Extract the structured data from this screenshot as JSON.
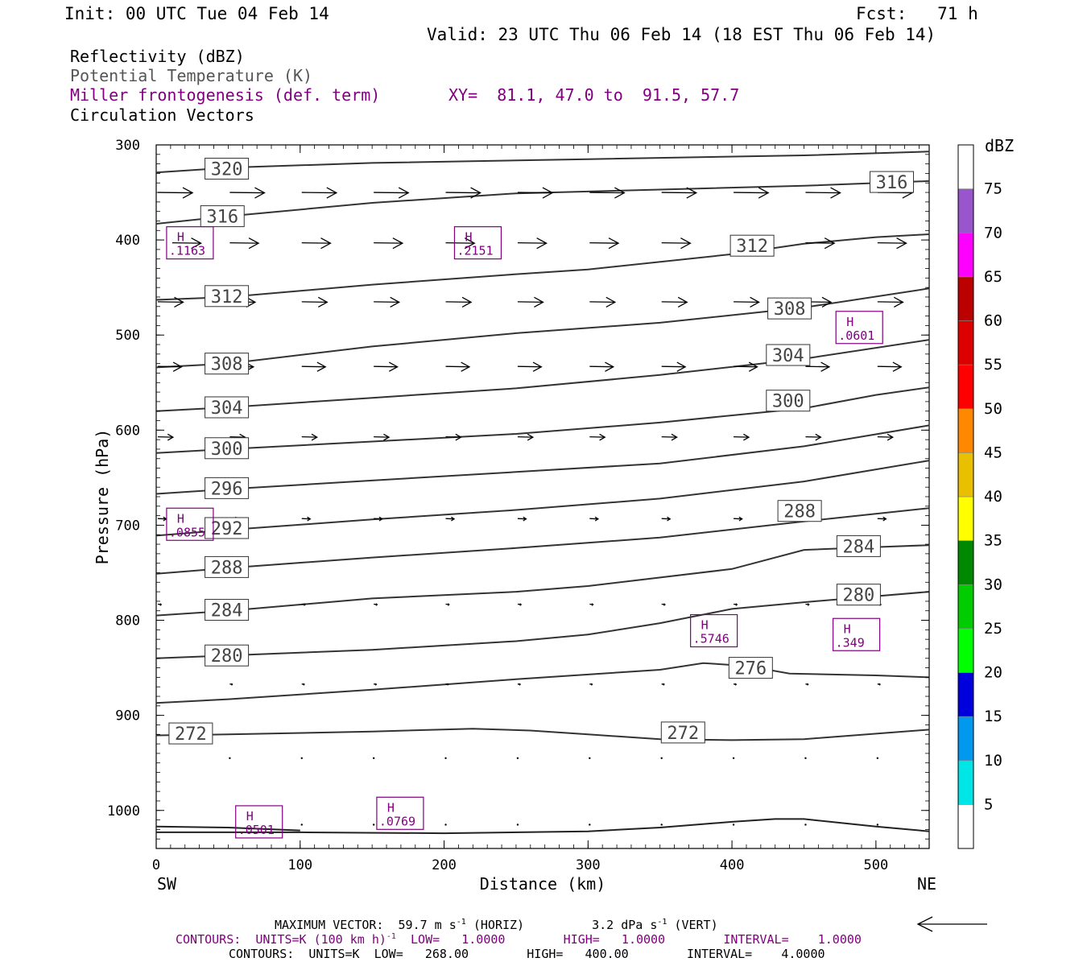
{
  "header": {
    "init": "Init: 00 UTC Tue 04 Feb 14",
    "fcst": "Fcst:   71 h",
    "valid": "Valid: 23 UTC Thu 06 Feb 14 (18 EST Thu 06 Feb 14)"
  },
  "fields": {
    "reflectivity": "Reflectivity (dBZ)",
    "theta": "Potential Temperature (K)",
    "frontogenesis": "Miller frontogenesis (def. term)",
    "xy": "XY=  81.1, 47.0 to  91.5, 57.7",
    "vectors": "Circulation Vectors"
  },
  "footer": {
    "max_vector_label": "MAXIMUM VECTOR:  59.7 m s",
    "max_vector_horiz_sup": "-1",
    "max_vector_horiz": " (HORIZ)",
    "max_vector_vert_val": "3.2 dPa s",
    "max_vector_vert_sup": "-1",
    "max_vector_vert": " (VERT)",
    "contours1_a": "CONTOURS:  UNITS=K (100 km h)",
    "contours1_sup": "-1",
    "contours1_b": "  LOW=   1.0000        HIGH=   1.0000        INTERVAL=    1.0000",
    "contours2": "CONTOURS:  UNITS=K  LOW=   268.00        HIGH=   400.00        INTERVAL=    4.0000"
  },
  "chart_data": {
    "type": "cross-section",
    "xlabel": "Distance (km)",
    "ylabel": "Pressure (hPa)",
    "xlim": [
      0,
      537
    ],
    "ylim": [
      300,
      1040
    ],
    "x_ticks": [
      0,
      100,
      200,
      300,
      400,
      500
    ],
    "y_ticks": [
      300,
      400,
      500,
      600,
      700,
      800,
      900,
      1000
    ],
    "x_end_labels": {
      "left": "SW",
      "right": "NE"
    },
    "colorbar": {
      "unit": "dBZ",
      "levels": [
        5,
        10,
        15,
        20,
        25,
        30,
        35,
        40,
        45,
        50,
        55,
        60,
        65,
        70,
        75
      ],
      "colors": [
        "#ffffff",
        "#00e5e5",
        "#0099ee",
        "#0000dd",
        "#00ff00",
        "#00cc00",
        "#008800",
        "#ffff00",
        "#e8c000",
        "#ff8800",
        "#ff0000",
        "#dd0000",
        "#bb0000",
        "#ff00ff",
        "#9955cc",
        "#ffffff"
      ]
    },
    "theta_contours": [
      {
        "value": 320,
        "label": "320",
        "points": [
          [
            0,
            329
          ],
          [
            50,
            324
          ],
          [
            150,
            319
          ],
          [
            300,
            315
          ],
          [
            450,
            311
          ],
          [
            537,
            307
          ]
        ],
        "label_at": [
          [
            49,
            325
          ]
        ]
      },
      {
        "value": 316,
        "label": "316",
        "points": [
          [
            0,
            383
          ],
          [
            50,
            375
          ],
          [
            150,
            361
          ],
          [
            250,
            351
          ],
          [
            350,
            347
          ],
          [
            450,
            343
          ],
          [
            537,
            338
          ]
        ],
        "label_at": [
          [
            46,
            375
          ],
          [
            511,
            339
          ]
        ]
      },
      {
        "value": 312,
        "label": "312",
        "points": [
          [
            0,
            463
          ],
          [
            50,
            460
          ],
          [
            150,
            447
          ],
          [
            250,
            436
          ],
          [
            300,
            431
          ],
          [
            400,
            415
          ],
          [
            450,
            404
          ],
          [
            500,
            397
          ],
          [
            537,
            394
          ]
        ],
        "label_at": [
          [
            49,
            459
          ],
          [
            414,
            406
          ]
        ]
      },
      {
        "value": 308,
        "label": "308",
        "points": [
          [
            0,
            534
          ],
          [
            50,
            530
          ],
          [
            150,
            512
          ],
          [
            250,
            498
          ],
          [
            350,
            487
          ],
          [
            450,
            471
          ],
          [
            537,
            451
          ]
        ],
        "label_at": [
          [
            49,
            530
          ],
          [
            440,
            472
          ]
        ]
      },
      {
        "value": 304,
        "label": "304",
        "points": [
          [
            0,
            580
          ],
          [
            50,
            576
          ],
          [
            150,
            566
          ],
          [
            250,
            556
          ],
          [
            350,
            542
          ],
          [
            450,
            525
          ],
          [
            537,
            505
          ]
        ],
        "label_at": [
          [
            49,
            576
          ],
          [
            439,
            521
          ]
        ]
      },
      {
        "value": 300,
        "label": "300",
        "points": [
          [
            0,
            624
          ],
          [
            50,
            620
          ],
          [
            150,
            612
          ],
          [
            250,
            604
          ],
          [
            350,
            592
          ],
          [
            450,
            577
          ],
          [
            500,
            563
          ],
          [
            537,
            555
          ]
        ],
        "label_at": [
          [
            49,
            619
          ],
          [
            439,
            569
          ]
        ]
      },
      {
        "value": 296,
        "label": "296",
        "points": [
          [
            0,
            667
          ],
          [
            50,
            662
          ],
          [
            150,
            653
          ],
          [
            250,
            644
          ],
          [
            350,
            635
          ],
          [
            450,
            617
          ],
          [
            537,
            595
          ]
        ],
        "label_at": [
          [
            49,
            661
          ]
        ]
      },
      {
        "value": 292,
        "label": "292",
        "points": [
          [
            0,
            711
          ],
          [
            50,
            705
          ],
          [
            150,
            694
          ],
          [
            250,
            684
          ],
          [
            350,
            672
          ],
          [
            450,
            654
          ],
          [
            537,
            632
          ]
        ],
        "label_at": [
          [
            49,
            703
          ]
        ]
      },
      {
        "value": 288,
        "label": "288",
        "points": [
          [
            0,
            751
          ],
          [
            50,
            745
          ],
          [
            150,
            734
          ],
          [
            250,
            724
          ],
          [
            350,
            713
          ],
          [
            450,
            696
          ],
          [
            537,
            682
          ]
        ],
        "label_at": [
          [
            49,
            744
          ],
          [
            447,
            685
          ]
        ]
      },
      {
        "value": 284,
        "label": "284",
        "points": [
          [
            0,
            795
          ],
          [
            50,
            790
          ],
          [
            150,
            777
          ],
          [
            250,
            770
          ],
          [
            300,
            764
          ],
          [
            400,
            746
          ],
          [
            450,
            726
          ],
          [
            500,
            723
          ],
          [
            537,
            721
          ]
        ],
        "label_at": [
          [
            49,
            789
          ],
          [
            488,
            722
          ]
        ]
      },
      {
        "value": 280,
        "label": "280",
        "points": [
          [
            0,
            840
          ],
          [
            50,
            837
          ],
          [
            150,
            831
          ],
          [
            250,
            822
          ],
          [
            300,
            815
          ],
          [
            350,
            803
          ],
          [
            400,
            788
          ],
          [
            450,
            781
          ],
          [
            537,
            770
          ]
        ],
        "label_at": [
          [
            49,
            837
          ],
          [
            488,
            773
          ]
        ]
      },
      {
        "value": 276,
        "label": "276",
        "points": [
          [
            0,
            887
          ],
          [
            50,
            883
          ],
          [
            150,
            873
          ],
          [
            250,
            862
          ],
          [
            300,
            857
          ],
          [
            350,
            852
          ],
          [
            380,
            845
          ],
          [
            410,
            848
          ],
          [
            440,
            856
          ],
          [
            500,
            858
          ],
          [
            537,
            860
          ]
        ],
        "label_at": [
          [
            413,
            850
          ]
        ]
      },
      {
        "value": 272,
        "label": "272",
        "points": [
          [
            0,
            921
          ],
          [
            50,
            920
          ],
          [
            150,
            917
          ],
          [
            220,
            914
          ],
          [
            260,
            916
          ],
          [
            300,
            920
          ],
          [
            350,
            925
          ],
          [
            400,
            926
          ],
          [
            450,
            925
          ],
          [
            537,
            915
          ]
        ],
        "label_at": [
          [
            24,
            919
          ],
          [
            366,
            918
          ]
        ]
      }
    ],
    "surface_lines": [
      {
        "points": [
          [
            0,
            1017
          ],
          [
            50,
            1018
          ],
          [
            100,
            1021
          ]
        ]
      },
      {
        "points": [
          [
            0,
            1023
          ],
          [
            100,
            1023
          ],
          [
            200,
            1024
          ],
          [
            300,
            1022
          ],
          [
            350,
            1018
          ],
          [
            400,
            1012
          ],
          [
            430,
            1009
          ],
          [
            450,
            1009
          ],
          [
            500,
            1017
          ],
          [
            537,
            1022
          ]
        ]
      }
    ],
    "frontogenesis_highs": [
      {
        "label": "H",
        "value": ".1163",
        "x": 24,
        "p": 403
      },
      {
        "label": "H",
        "value": ".2151",
        "x": 224,
        "p": 403
      },
      {
        "label": "H",
        "value": ".0601",
        "x": 489,
        "p": 492
      },
      {
        "label": "H",
        "value": ".0855",
        "x": 24,
        "p": 699
      },
      {
        "label": "H",
        "value": ".5746",
        "x": 388,
        "p": 811
      },
      {
        "label": "H",
        "value": ".349",
        "x": 487,
        "p": 815
      },
      {
        "label": "H",
        "value": ".0501",
        "x": 72,
        "p": 1012
      },
      {
        "label": "H",
        "value": ".0769",
        "x": 170,
        "p": 1003
      }
    ],
    "vector_rows": [
      {
        "p": 350,
        "x": [
          0,
          50,
          100,
          150,
          200,
          250,
          300,
          350,
          400,
          450,
          500
        ],
        "len": 41
      },
      {
        "p": 403,
        "x": [
          10,
          50,
          100,
          150,
          200,
          250,
          300,
          350,
          400,
          450,
          500
        ],
        "len": 34
      },
      {
        "p": 465,
        "x": [
          0,
          50,
          100,
          150,
          200,
          250,
          300,
          350,
          400,
          450,
          500
        ],
        "len": 30
      },
      {
        "p": 533,
        "x": [
          0,
          50,
          100,
          150,
          200,
          250,
          300,
          350,
          400,
          450,
          500
        ],
        "len": 28
      },
      {
        "p": 607,
        "x": [
          0,
          50,
          100,
          150,
          200,
          250,
          300,
          350,
          400,
          450,
          500
        ],
        "len": 18
      },
      {
        "p": 693,
        "x": [
          0,
          50,
          100,
          150,
          200,
          250,
          300,
          350,
          400,
          450,
          500
        ],
        "len": 10
      },
      {
        "p": 783,
        "x": [
          0,
          50,
          100,
          150,
          200,
          250,
          300,
          350,
          400,
          450,
          500
        ],
        "len": 4
      },
      {
        "p": 867,
        "x": [
          50,
          100,
          150,
          200,
          250,
          300,
          350,
          400,
          450,
          500
        ],
        "len": 3
      },
      {
        "p": 945,
        "x": [
          50,
          100,
          150,
          200,
          250,
          300,
          350,
          400,
          450,
          500
        ],
        "len": 1
      },
      {
        "p": 1015,
        "x": [
          100,
          150,
          200,
          250,
          300,
          350,
          400,
          450,
          500
        ],
        "len": 1
      }
    ]
  }
}
